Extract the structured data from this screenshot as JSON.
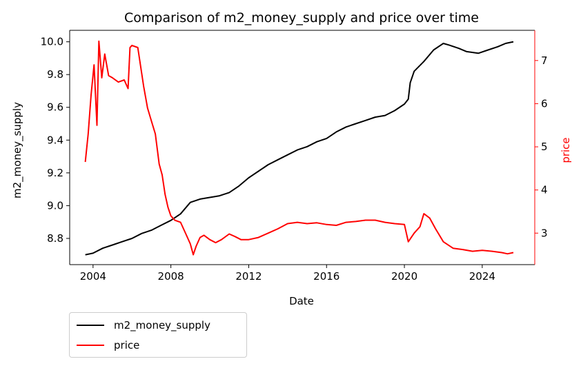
{
  "chart_data": {
    "type": "line",
    "title": "Comparison of m2_money_supply and price over time",
    "xlabel": "Date",
    "ylabel_left": "m2_money_supply",
    "ylabel_right": "price",
    "xlim": [
      2002.8,
      2026.7
    ],
    "ylim_left": [
      8.64,
      10.07
    ],
    "ylim_right": [
      2.27,
      7.7
    ],
    "x_ticks": [
      2004,
      2008,
      2012,
      2016,
      2020,
      2024
    ],
    "y_left_ticks": [
      "8.8",
      "9.0",
      "9.2",
      "9.4",
      "9.6",
      "9.8",
      "10.0"
    ],
    "y_right_ticks": [
      "3",
      "4",
      "5",
      "6",
      "7"
    ],
    "grid": false,
    "legend_placement": "below-left",
    "series": [
      {
        "name": "m2_money_supply",
        "axis": "left",
        "color": "#000000",
        "x": [
          2003.6,
          2004.0,
          2004.5,
          2005.0,
          2005.5,
          2006.0,
          2006.5,
          2007.0,
          2007.5,
          2008.0,
          2008.5,
          2009.0,
          2009.5,
          2010.0,
          2010.5,
          2011.0,
          2011.5,
          2012.0,
          2012.5,
          2013.0,
          2013.5,
          2014.0,
          2014.5,
          2015.0,
          2015.5,
          2016.0,
          2016.5,
          2017.0,
          2017.5,
          2018.0,
          2018.5,
          2019.0,
          2019.5,
          2020.0,
          2020.2,
          2020.3,
          2020.5,
          2021.0,
          2021.5,
          2022.0,
          2022.3,
          2022.8,
          2023.2,
          2023.8,
          2024.3,
          2024.8,
          2025.2,
          2025.6
        ],
        "values": [
          8.7,
          8.71,
          8.74,
          8.76,
          8.78,
          8.8,
          8.83,
          8.85,
          8.88,
          8.91,
          8.95,
          9.02,
          9.04,
          9.05,
          9.06,
          9.08,
          9.12,
          9.17,
          9.21,
          9.25,
          9.28,
          9.31,
          9.34,
          9.36,
          9.39,
          9.41,
          9.45,
          9.48,
          9.5,
          9.52,
          9.54,
          9.55,
          9.58,
          9.62,
          9.65,
          9.75,
          9.82,
          9.88,
          9.95,
          9.99,
          9.98,
          9.96,
          9.94,
          9.93,
          9.95,
          9.97,
          9.99,
          10.0
        ]
      },
      {
        "name": "price",
        "axis": "right",
        "color": "#ff0000",
        "x": [
          2003.6,
          2003.75,
          2003.9,
          2004.05,
          2004.2,
          2004.3,
          2004.45,
          2004.6,
          2004.8,
          2005.0,
          2005.3,
          2005.6,
          2005.8,
          2005.9,
          2006.0,
          2006.3,
          2006.6,
          2006.8,
          2007.0,
          2007.2,
          2007.4,
          2007.55,
          2007.7,
          2007.85,
          2008.0,
          2008.2,
          2008.5,
          2008.8,
          2009.0,
          2009.15,
          2009.3,
          2009.5,
          2009.7,
          2010.0,
          2010.3,
          2010.6,
          2011.0,
          2011.3,
          2011.6,
          2012.0,
          2012.5,
          2013.0,
          2013.5,
          2014.0,
          2014.5,
          2015.0,
          2015.5,
          2016.0,
          2016.5,
          2017.0,
          2017.5,
          2018.0,
          2018.5,
          2019.0,
          2019.5,
          2020.0,
          2020.2,
          2020.5,
          2020.8,
          2021.0,
          2021.3,
          2021.6,
          2022.0,
          2022.5,
          2023.0,
          2023.5,
          2024.0,
          2024.5,
          2025.0,
          2025.3,
          2025.6
        ],
        "values": [
          4.65,
          5.3,
          6.2,
          6.9,
          5.5,
          7.45,
          6.6,
          7.15,
          6.65,
          6.6,
          6.5,
          6.55,
          6.35,
          7.3,
          7.35,
          7.3,
          6.4,
          5.9,
          5.6,
          5.3,
          4.6,
          4.35,
          3.9,
          3.6,
          3.4,
          3.3,
          3.25,
          2.95,
          2.75,
          2.5,
          2.7,
          2.9,
          2.95,
          2.85,
          2.78,
          2.85,
          2.98,
          2.92,
          2.85,
          2.85,
          2.9,
          3.0,
          3.1,
          3.22,
          3.25,
          3.22,
          3.24,
          3.2,
          3.18,
          3.25,
          3.27,
          3.3,
          3.3,
          3.25,
          3.22,
          3.2,
          2.8,
          3.0,
          3.15,
          3.45,
          3.35,
          3.1,
          2.8,
          2.65,
          2.62,
          2.58,
          2.6,
          2.58,
          2.55,
          2.52,
          2.55
        ]
      }
    ]
  },
  "legend": {
    "items": [
      "m2_money_supply",
      "price"
    ],
    "colors": [
      "#000000",
      "#ff0000"
    ]
  }
}
